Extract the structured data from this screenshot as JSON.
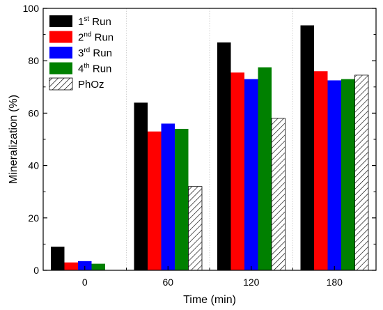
{
  "chart_data": {
    "type": "bar",
    "xlabel": "Time (min)",
    "ylabel": "Mineralization (%)",
    "categories": [
      "0",
      "60",
      "120",
      "180"
    ],
    "ylim": [
      0,
      100
    ],
    "yticks": [
      0,
      20,
      40,
      60,
      80,
      100
    ],
    "grid": "vertical dotted lines at category boundaries",
    "legend_position": "top-left",
    "series": [
      {
        "label_main": "1",
        "label_sup": "st",
        "label_tail": " Run",
        "color": "#000000",
        "pattern": "solid",
        "values": [
          9,
          64,
          87,
          93.5
        ]
      },
      {
        "label_main": "2",
        "label_sup": "nd",
        "label_tail": " Run",
        "color": "#ff0000",
        "pattern": "solid",
        "values": [
          3,
          53,
          75.5,
          76
        ]
      },
      {
        "label_main": "3",
        "label_sup": "rd",
        "label_tail": " Run",
        "color": "#0000ff",
        "pattern": "solid",
        "values": [
          3.5,
          56,
          73,
          72.5
        ]
      },
      {
        "label_main": "4",
        "label_sup": "th",
        "label_tail": " Run",
        "color": "#008000",
        "pattern": "solid",
        "values": [
          2.5,
          54,
          77.5,
          73
        ]
      },
      {
        "label_main": "PhOz",
        "label_sup": "",
        "label_tail": "",
        "color": "#000000",
        "pattern": "hatch",
        "values": [
          0,
          32,
          58,
          74.5
        ]
      }
    ]
  }
}
